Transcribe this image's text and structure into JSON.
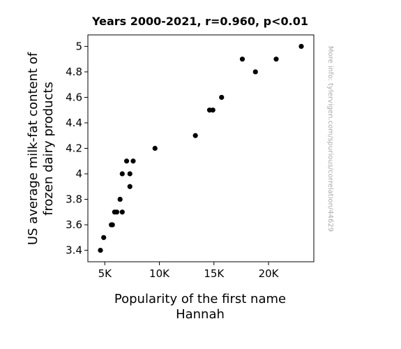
{
  "chart_data": {
    "type": "scatter",
    "title": "Years 2000-2021, r=0.960, p<0.01",
    "xlabel": [
      "Popularity of the first name",
      "Hannah"
    ],
    "ylabel": [
      "US average milk-fat content of",
      "frozen dairy products"
    ],
    "side_note": "More info: tylervigen.com/spurious/correlation/44629",
    "xlim": [
      3450,
      24150
    ],
    "ylim": [
      3.31,
      5.09
    ],
    "x_ticks": [
      5000,
      10000,
      15000,
      20000
    ],
    "x_tick_labels": [
      "5K",
      "10K",
      "15K",
      "20K"
    ],
    "y_ticks": [
      3.4,
      3.6,
      3.8,
      4.0,
      4.2,
      4.4,
      4.6,
      4.8,
      5.0
    ],
    "y_tick_labels": [
      "3.4",
      "3.6",
      "3.8",
      "4",
      "4.2",
      "4.4",
      "4.6",
      "4.8",
      "5"
    ],
    "grid": false,
    "point_color": "#000000",
    "points": [
      {
        "x": 23000,
        "y": 5.0
      },
      {
        "x": 20700,
        "y": 4.9
      },
      {
        "x": 17600,
        "y": 4.9
      },
      {
        "x": 18800,
        "y": 4.8
      },
      {
        "x": 15700,
        "y": 4.6
      },
      {
        "x": 14600,
        "y": 4.5
      },
      {
        "x": 14900,
        "y": 4.5
      },
      {
        "x": 13300,
        "y": 4.3
      },
      {
        "x": 9600,
        "y": 4.2
      },
      {
        "x": 7000,
        "y": 4.1
      },
      {
        "x": 7600,
        "y": 4.1
      },
      {
        "x": 6600,
        "y": 4.0
      },
      {
        "x": 7300,
        "y": 4.0
      },
      {
        "x": 7300,
        "y": 3.9
      },
      {
        "x": 6400,
        "y": 3.8
      },
      {
        "x": 5900,
        "y": 3.7
      },
      {
        "x": 6100,
        "y": 3.7
      },
      {
        "x": 6600,
        "y": 3.7
      },
      {
        "x": 5600,
        "y": 3.6
      },
      {
        "x": 5700,
        "y": 3.6
      },
      {
        "x": 4900,
        "y": 3.5
      },
      {
        "x": 4600,
        "y": 3.4
      }
    ]
  }
}
